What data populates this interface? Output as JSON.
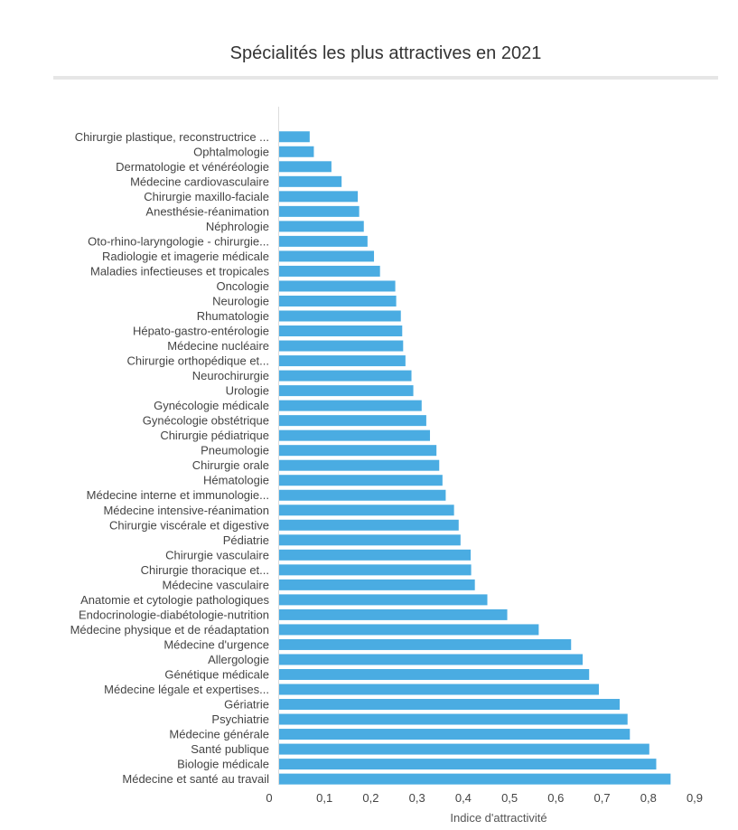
{
  "chart_data": {
    "type": "bar",
    "orientation": "horizontal",
    "title": "Spécialités les plus attractives en 2021",
    "xlabel": "Indice d'attractivité",
    "ylabel": "",
    "xlim": [
      0,
      0.9
    ],
    "xticks": [
      "0",
      "0,1",
      "0,2",
      "0,3",
      "0,4",
      "0,5",
      "0,6",
      "0,7",
      "0,8",
      "0,9"
    ],
    "grid": false,
    "color": "#4aace2",
    "categories": [
      "Chirurgie plastique, reconstructrice ...",
      "Ophtalmologie",
      "Dermatologie et vénéréologie",
      "Médecine cardiovasculaire",
      "Chirurgie maxillo-faciale",
      "Anesthésie-réanimation",
      "Néphrologie",
      "Oto-rhino-laryngologie - chirurgie...",
      "Radiologie et imagerie médicale",
      "Maladies infectieuses et tropicales",
      "Oncologie",
      "Neurologie",
      "Rhumatologie",
      "Hépato-gastro-entérologie",
      "Médecine nucléaire",
      "Chirurgie orthopédique et...",
      "Neurochirurgie",
      "Urologie",
      "Gynécologie médicale",
      "Gynécologie obstétrique",
      "Chirurgie pédiatrique",
      "Pneumologie",
      "Chirurgie orale",
      "Hématologie",
      "Médecine interne et immunologie...",
      "Médecine intensive-réanimation",
      "Chirurgie viscérale et digestive",
      "Pédiatrie",
      "Chirurgie vasculaire",
      "Chirurgie thoracique et...",
      "Médecine vasculaire",
      "Anatomie et cytologie pathologiques",
      "Endocrinologie-diabétologie-nutrition",
      "Médecine physique et de réadaptation",
      "Médecine d'urgence",
      "Allergologie",
      "Génétique médicale",
      "Médecine légale et expertises...",
      "Gériatrie",
      "Psychiatrie",
      "Médecine générale",
      "Santé publique",
      "Biologie médicale",
      "Médecine et santé au travail"
    ],
    "values": [
      0.068,
      0.077,
      0.115,
      0.137,
      0.172,
      0.175,
      0.185,
      0.193,
      0.207,
      0.22,
      0.253,
      0.255,
      0.265,
      0.268,
      0.27,
      0.275,
      0.288,
      0.292,
      0.31,
      0.32,
      0.328,
      0.342,
      0.348,
      0.355,
      0.362,
      0.38,
      0.39,
      0.394,
      0.416,
      0.417,
      0.425,
      0.452,
      0.495,
      0.563,
      0.633,
      0.658,
      0.672,
      0.693,
      0.738,
      0.755,
      0.76,
      0.802,
      0.817,
      0.848
    ]
  }
}
